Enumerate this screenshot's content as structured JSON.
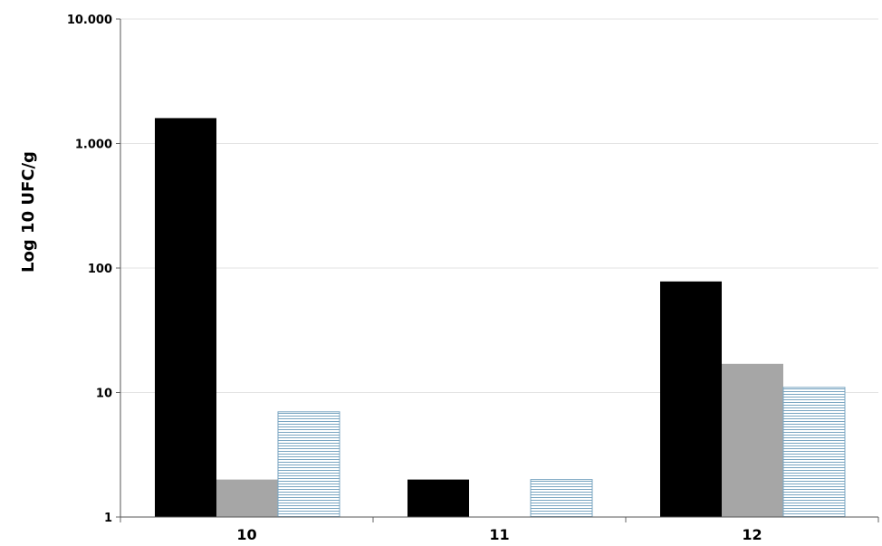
{
  "chart_data": {
    "type": "bar",
    "y_scale": "log",
    "ylim": [
      1,
      10000
    ],
    "ylabel": "Log 10  UFC/g",
    "xlabel": "",
    "title": "",
    "grid": true,
    "legend": "none",
    "categories": [
      "10",
      "11",
      "12"
    ],
    "y_tick_labels": [
      "1",
      "10",
      "100",
      "1.000",
      "10.000"
    ],
    "y_tick_values": [
      1,
      10,
      100,
      1000,
      10000
    ],
    "series": [
      {
        "values": [
          1600,
          2,
          78
        ],
        "color": "#000000",
        "pattern": "solid"
      },
      {
        "values": [
          2,
          null,
          17
        ],
        "color": "#a6a6a6",
        "pattern": "solid"
      },
      {
        "values": [
          7,
          2,
          11
        ],
        "color": "#7aa6c2",
        "pattern": "horizontal-lines"
      }
    ]
  }
}
